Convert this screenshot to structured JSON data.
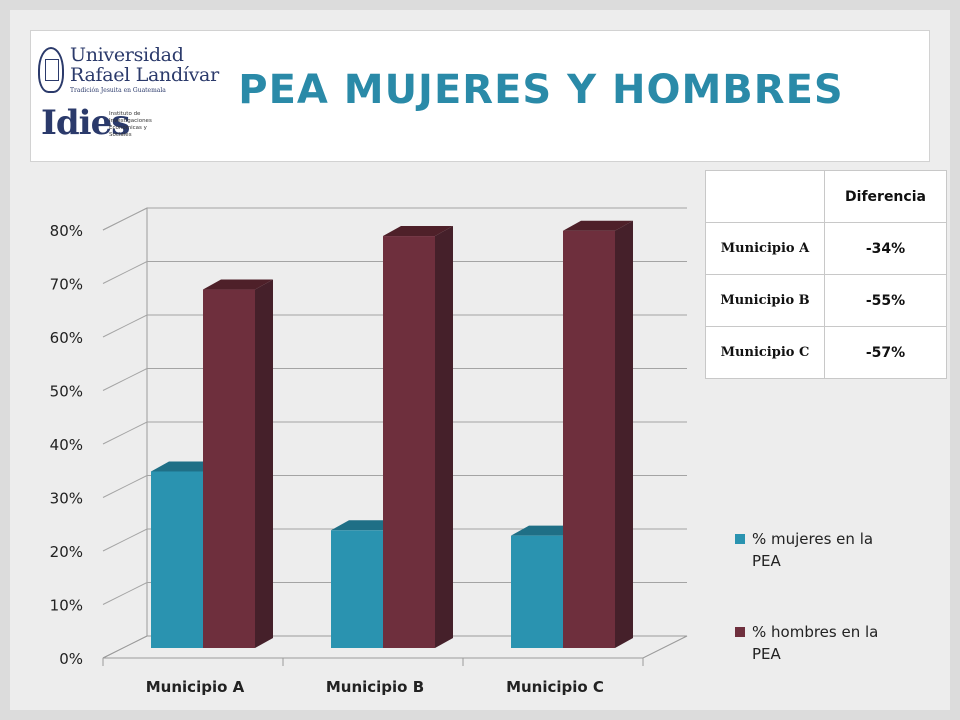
{
  "header": {
    "title": "PEA MUJERES Y HOMBRES",
    "logo_university_line1": "Universidad",
    "logo_university_line2": "Rafael Landívar",
    "logo_university_tagline": "Tradición Jesuita en Guatemala",
    "logo_idies_word": "Idies",
    "logo_idies_sub": "Instituto de Investigaciones Económicas y Sociales"
  },
  "colors": {
    "title": "#2a8aa8",
    "mujeres": "#2a93b0",
    "hombres": "#6e2f3d",
    "background": "#ededed"
  },
  "chart_data": {
    "type": "bar",
    "title": "",
    "xlabel": "",
    "ylabel": "",
    "categories": [
      "Municipio A",
      "Municipio B",
      "Municipio C"
    ],
    "series": [
      {
        "name": "% mujeres en la PEA",
        "values": [
          0.33,
          0.22,
          0.21
        ]
      },
      {
        "name": "% hombres en la PEA",
        "values": [
          0.67,
          0.77,
          0.78
        ]
      }
    ],
    "ylim": [
      0,
      0.8
    ],
    "yticks": [
      "0%",
      "10%",
      "20%",
      "30%",
      "40%",
      "50%",
      "60%",
      "70%",
      "80%"
    ],
    "grid": true,
    "legend": "right",
    "style": "3d-clustered-column"
  },
  "diff_table": {
    "header": [
      "",
      "Diferencia"
    ],
    "rows": [
      {
        "label": "Municipio A",
        "value": "-34%"
      },
      {
        "label": "Municipio B",
        "value": "-55%"
      },
      {
        "label": "Municipio C",
        "value": "-57%"
      }
    ]
  },
  "legend": {
    "items": [
      {
        "label": "% mujeres en la PEA"
      },
      {
        "label": "% hombres en la PEA"
      }
    ]
  }
}
